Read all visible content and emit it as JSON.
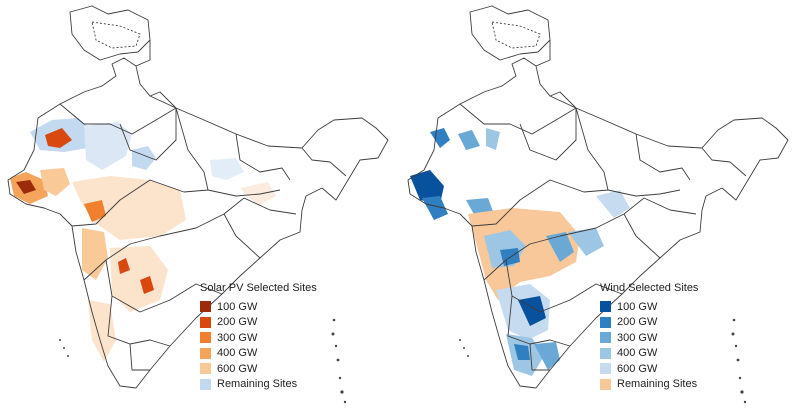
{
  "maps": [
    {
      "legend_title": "Solar PV Selected Sites",
      "legend": [
        {
          "label": "100 GW",
          "color": "#9c2b0b"
        },
        {
          "label": "200 GW",
          "color": "#d9480f"
        },
        {
          "label": "300 GW",
          "color": "#f07f2e"
        },
        {
          "label": "400 GW",
          "color": "#f5a45c"
        },
        {
          "label": "600 GW",
          "color": "#f9c998"
        },
        {
          "label": "Remaining Sites",
          "color": "#c3d9ef"
        }
      ]
    },
    {
      "legend_title": "Wind Selected Sites",
      "legend": [
        {
          "label": "100 GW",
          "color": "#08519c"
        },
        {
          "label": "200 GW",
          "color": "#2f7fc1"
        },
        {
          "label": "300 GW",
          "color": "#6aa8d6"
        },
        {
          "label": "400 GW",
          "color": "#9cc6e4"
        },
        {
          "label": "600 GW",
          "color": "#c6dbef"
        },
        {
          "label": "Remaining Sites",
          "color": "#f8c89a"
        }
      ]
    }
  ]
}
